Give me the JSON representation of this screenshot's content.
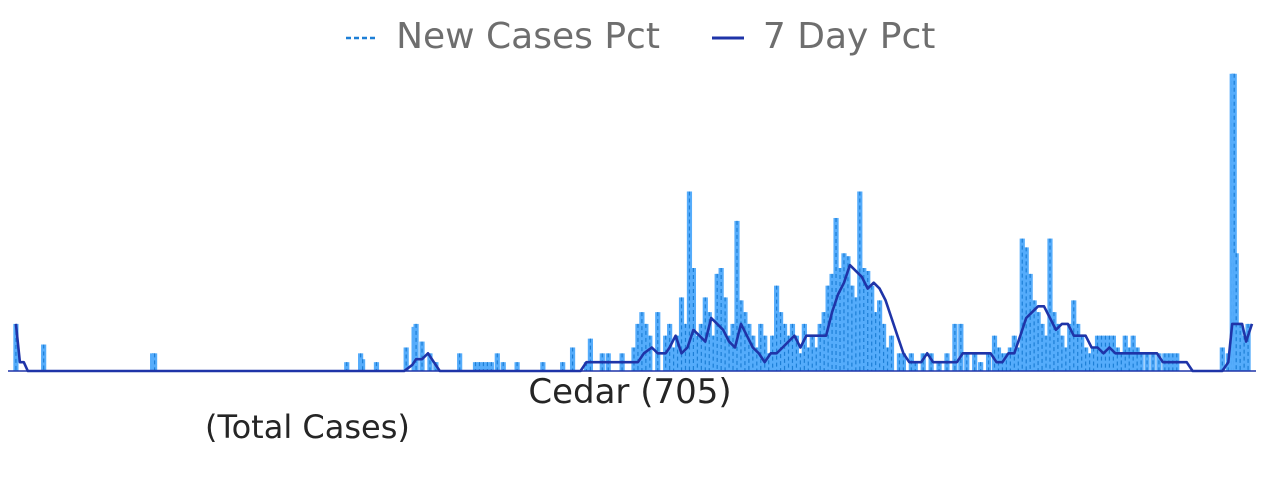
{
  "chart_data": {
    "type": "bar",
    "title": "",
    "xlabel": "Cedar (705)",
    "sublabel": "(Total Cases)",
    "ylabel": "",
    "grid": false,
    "legend_position": "top-center",
    "colors": {
      "bars": "#55acfb",
      "bar_dash": "#1d7fd6",
      "line": "#1f34a8"
    },
    "legend": [
      {
        "name": "New Cases Pct",
        "style": "dashed",
        "color": "#1d7fd6"
      },
      {
        "name": "7 Day Pct",
        "style": "solid",
        "color": "#1f34a8"
      }
    ],
    "spikes": [
      [
        8,
        1.6
      ],
      [
        36,
        0.9
      ],
      [
        146,
        0.6
      ],
      [
        148,
        0.6
      ],
      [
        342,
        0.3
      ],
      [
        356,
        0.6
      ],
      [
        358,
        0.4
      ],
      [
        372,
        0.3
      ],
      [
        402,
        0.8
      ],
      [
        410,
        1.5
      ],
      [
        412,
        1.6
      ],
      [
        418,
        1.0
      ],
      [
        426,
        0.6
      ],
      [
        432,
        0.3
      ],
      [
        456,
        0.6
      ],
      [
        472,
        0.3
      ],
      [
        476,
        0.3
      ],
      [
        480,
        0.3
      ],
      [
        484,
        0.3
      ],
      [
        488,
        0.3
      ],
      [
        494,
        0.6
      ],
      [
        500,
        0.3
      ],
      [
        514,
        0.3
      ],
      [
        540,
        0.3
      ],
      [
        560,
        0.3
      ],
      [
        570,
        0.8
      ],
      [
        584,
        0.3
      ],
      [
        588,
        1.1
      ],
      [
        600,
        0.6
      ],
      [
        606,
        0.6
      ],
      [
        620,
        0.6
      ],
      [
        632,
        0.8
      ],
      [
        636,
        1.6
      ],
      [
        640,
        2.0
      ],
      [
        644,
        1.6
      ],
      [
        648,
        1.2
      ],
      [
        656,
        2.0
      ],
      [
        664,
        1.2
      ],
      [
        668,
        1.6
      ],
      [
        672,
        0.8
      ],
      [
        676,
        1.2
      ],
      [
        680,
        2.5
      ],
      [
        684,
        1.6
      ],
      [
        688,
        6.1
      ],
      [
        692,
        3.5
      ],
      [
        696,
        1.2
      ],
      [
        700,
        1.6
      ],
      [
        704,
        2.5
      ],
      [
        708,
        2.0
      ],
      [
        712,
        1.2
      ],
      [
        716,
        3.3
      ],
      [
        720,
        3.5
      ],
      [
        724,
        2.5
      ],
      [
        728,
        1.2
      ],
      [
        732,
        1.6
      ],
      [
        736,
        5.1
      ],
      [
        740,
        2.4
      ],
      [
        744,
        2.0
      ],
      [
        748,
        1.6
      ],
      [
        752,
        1.2
      ],
      [
        756,
        0.8
      ],
      [
        760,
        1.6
      ],
      [
        764,
        1.2
      ],
      [
        768,
        0.6
      ],
      [
        772,
        1.2
      ],
      [
        776,
        2.9
      ],
      [
        780,
        2.0
      ],
      [
        784,
        1.6
      ],
      [
        788,
        1.2
      ],
      [
        792,
        1.6
      ],
      [
        796,
        1.2
      ],
      [
        800,
        0.6
      ],
      [
        804,
        1.6
      ],
      [
        808,
        0.8
      ],
      [
        812,
        1.2
      ],
      [
        816,
        0.8
      ],
      [
        820,
        1.6
      ],
      [
        824,
        2.0
      ],
      [
        828,
        2.9
      ],
      [
        832,
        3.3
      ],
      [
        836,
        5.2
      ],
      [
        840,
        3.5
      ],
      [
        844,
        4.0
      ],
      [
        848,
        3.9
      ],
      [
        852,
        2.9
      ],
      [
        856,
        2.5
      ],
      [
        860,
        6.1
      ],
      [
        864,
        3.5
      ],
      [
        868,
        3.4
      ],
      [
        872,
        2.9
      ],
      [
        876,
        2.0
      ],
      [
        880,
        2.4
      ],
      [
        884,
        1.6
      ],
      [
        888,
        0.8
      ],
      [
        892,
        1.2
      ],
      [
        900,
        0.6
      ],
      [
        904,
        0.6
      ],
      [
        912,
        0.6
      ],
      [
        916,
        0.3
      ],
      [
        924,
        0.6
      ],
      [
        932,
        0.6
      ],
      [
        940,
        0.3
      ],
      [
        948,
        0.6
      ],
      [
        956,
        1.6
      ],
      [
        962,
        1.6
      ],
      [
        968,
        0.6
      ],
      [
        976,
        0.6
      ],
      [
        982,
        0.3
      ],
      [
        990,
        0.6
      ],
      [
        996,
        1.2
      ],
      [
        1000,
        0.8
      ],
      [
        1004,
        0.6
      ],
      [
        1008,
        0.6
      ],
      [
        1012,
        0.8
      ],
      [
        1016,
        1.2
      ],
      [
        1020,
        0.8
      ],
      [
        1024,
        4.5
      ],
      [
        1028,
        4.2
      ],
      [
        1032,
        3.3
      ],
      [
        1036,
        2.4
      ],
      [
        1040,
        2.0
      ],
      [
        1044,
        1.6
      ],
      [
        1048,
        1.2
      ],
      [
        1052,
        4.5
      ],
      [
        1056,
        2.0
      ],
      [
        1060,
        1.6
      ],
      [
        1064,
        1.2
      ],
      [
        1068,
        0.8
      ],
      [
        1072,
        1.6
      ],
      [
        1076,
        2.4
      ],
      [
        1080,
        1.6
      ],
      [
        1084,
        1.2
      ],
      [
        1088,
        0.8
      ],
      [
        1092,
        0.6
      ],
      [
        1096,
        0.8
      ],
      [
        1100,
        1.2
      ],
      [
        1104,
        1.2
      ],
      [
        1108,
        1.2
      ],
      [
        1112,
        1.2
      ],
      [
        1116,
        1.2
      ],
      [
        1120,
        0.8
      ],
      [
        1124,
        0.6
      ],
      [
        1128,
        1.2
      ],
      [
        1132,
        0.8
      ],
      [
        1136,
        1.2
      ],
      [
        1140,
        0.8
      ],
      [
        1144,
        0.6
      ],
      [
        1150,
        0.6
      ],
      [
        1156,
        0.6
      ],
      [
        1162,
        0.6
      ],
      [
        1168,
        0.6
      ],
      [
        1172,
        0.6
      ],
      [
        1176,
        0.6
      ],
      [
        1180,
        0.6
      ],
      [
        1226,
        0.8
      ],
      [
        1232,
        0.6
      ],
      [
        1236,
        10.1
      ],
      [
        1238,
        10.1
      ],
      [
        1240,
        4.0
      ],
      [
        1244,
        1.6
      ],
      [
        1248,
        1.2
      ],
      [
        1252,
        1.6
      ]
    ],
    "rolling_avg": [
      [
        8,
        1.6
      ],
      [
        12,
        0.3
      ],
      [
        16,
        0.3
      ],
      [
        20,
        0.0
      ],
      [
        400,
        0.0
      ],
      [
        408,
        0.2
      ],
      [
        412,
        0.4
      ],
      [
        418,
        0.4
      ],
      [
        424,
        0.6
      ],
      [
        430,
        0.3
      ],
      [
        436,
        0.0
      ],
      [
        578,
        0.0
      ],
      [
        584,
        0.3
      ],
      [
        636,
        0.3
      ],
      [
        642,
        0.6
      ],
      [
        650,
        0.8
      ],
      [
        656,
        0.6
      ],
      [
        664,
        0.6
      ],
      [
        668,
        0.8
      ],
      [
        674,
        1.2
      ],
      [
        680,
        0.6
      ],
      [
        686,
        0.8
      ],
      [
        692,
        1.4
      ],
      [
        698,
        1.2
      ],
      [
        704,
        1.0
      ],
      [
        710,
        1.8
      ],
      [
        716,
        1.6
      ],
      [
        722,
        1.4
      ],
      [
        728,
        1.0
      ],
      [
        734,
        0.8
      ],
      [
        740,
        1.6
      ],
      [
        746,
        1.2
      ],
      [
        752,
        0.8
      ],
      [
        758,
        0.6
      ],
      [
        764,
        0.3
      ],
      [
        770,
        0.6
      ],
      [
        776,
        0.6
      ],
      [
        782,
        0.8
      ],
      [
        788,
        1.0
      ],
      [
        794,
        1.2
      ],
      [
        800,
        0.8
      ],
      [
        806,
        1.2
      ],
      [
        812,
        1.2
      ],
      [
        820,
        1.2
      ],
      [
        826,
        1.2
      ],
      [
        832,
        2.0
      ],
      [
        838,
        2.6
      ],
      [
        844,
        3.0
      ],
      [
        850,
        3.6
      ],
      [
        856,
        3.4
      ],
      [
        862,
        3.2
      ],
      [
        868,
        2.8
      ],
      [
        874,
        3.0
      ],
      [
        880,
        2.8
      ],
      [
        886,
        2.4
      ],
      [
        892,
        1.8
      ],
      [
        898,
        1.2
      ],
      [
        904,
        0.6
      ],
      [
        910,
        0.3
      ],
      [
        916,
        0.3
      ],
      [
        922,
        0.3
      ],
      [
        928,
        0.6
      ],
      [
        934,
        0.3
      ],
      [
        940,
        0.3
      ],
      [
        946,
        0.3
      ],
      [
        952,
        0.3
      ],
      [
        958,
        0.3
      ],
      [
        964,
        0.6
      ],
      [
        970,
        0.6
      ],
      [
        976,
        0.6
      ],
      [
        984,
        0.6
      ],
      [
        992,
        0.6
      ],
      [
        998,
        0.3
      ],
      [
        1004,
        0.3
      ],
      [
        1010,
        0.6
      ],
      [
        1016,
        0.6
      ],
      [
        1022,
        1.2
      ],
      [
        1028,
        1.8
      ],
      [
        1034,
        2.0
      ],
      [
        1040,
        2.2
      ],
      [
        1046,
        2.2
      ],
      [
        1052,
        1.8
      ],
      [
        1058,
        1.4
      ],
      [
        1064,
        1.6
      ],
      [
        1070,
        1.6
      ],
      [
        1076,
        1.2
      ],
      [
        1082,
        1.2
      ],
      [
        1088,
        1.2
      ],
      [
        1094,
        0.8
      ],
      [
        1100,
        0.8
      ],
      [
        1106,
        0.6
      ],
      [
        1112,
        0.8
      ],
      [
        1118,
        0.6
      ],
      [
        1124,
        0.6
      ],
      [
        1130,
        0.6
      ],
      [
        1136,
        0.6
      ],
      [
        1142,
        0.6
      ],
      [
        1148,
        0.6
      ],
      [
        1154,
        0.6
      ],
      [
        1160,
        0.6
      ],
      [
        1166,
        0.3
      ],
      [
        1172,
        0.3
      ],
      [
        1178,
        0.3
      ],
      [
        1184,
        0.3
      ],
      [
        1190,
        0.3
      ],
      [
        1196,
        0.0
      ],
      [
        1226,
        0.0
      ],
      [
        1232,
        0.3
      ],
      [
        1236,
        1.6
      ],
      [
        1240,
        1.6
      ],
      [
        1246,
        1.6
      ],
      [
        1250,
        1.0
      ],
      [
        1256,
        1.6
      ]
    ],
    "xlim": [
      0,
      1260
    ],
    "ylim": [
      0,
      10.5
    ]
  }
}
